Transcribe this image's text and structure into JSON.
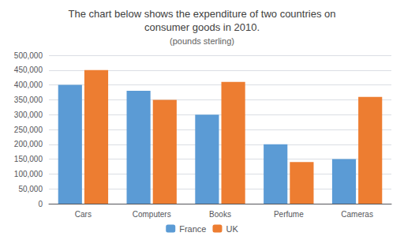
{
  "chart_data": {
    "type": "bar",
    "title": "The chart below shows the expenditure of two countries on\nconsumer goods in 2010.",
    "subtitle": "(pounds sterling)",
    "categories": [
      "Cars",
      "Computers",
      "Books",
      "Perfume",
      "Cameras"
    ],
    "series": [
      {
        "name": "France",
        "color": "#5B9BD5",
        "values": [
          400000,
          380000,
          300000,
          200000,
          150000
        ]
      },
      {
        "name": "UK",
        "color": "#ED7D31",
        "values": [
          450000,
          350000,
          410000,
          140000,
          360000
        ]
      }
    ],
    "ylim": [
      0,
      500000
    ],
    "yticks": [
      0,
      {
        "value": 50000,
        "label": "50,000"
      },
      {
        "value": 100000,
        "label": "100,000"
      },
      {
        "value": 150000,
        "label": "150,000"
      },
      {
        "value": 200000,
        "label": "200,000"
      },
      {
        "value": 250000,
        "label": "250,000"
      },
      {
        "value": 300000,
        "label": "300,000"
      },
      {
        "value": 350000,
        "label": "350,000"
      },
      {
        "value": 400000,
        "label": "400,000"
      },
      {
        "value": 450000,
        "label": "450,000"
      },
      {
        "value": 500000,
        "label": "500,000"
      }
    ],
    "grid": true,
    "legend": "bottom"
  }
}
